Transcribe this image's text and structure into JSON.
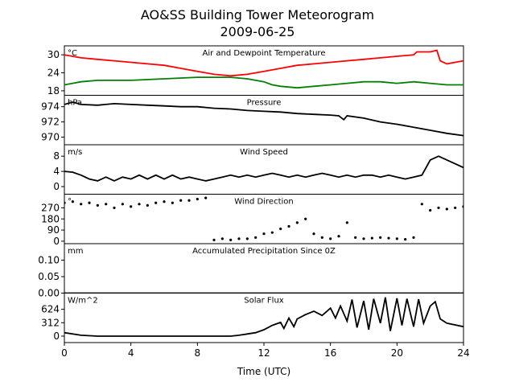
{
  "figure": {
    "title": "AO&SS Building Tower Meteorogram",
    "subtitle": "2009-06-25"
  },
  "colors": {
    "air_temp": "#ff0000",
    "dewpoint": "#008000",
    "line": "#000000"
  },
  "chart_data": [
    {
      "type": "line",
      "title": "Air and Dewpoint Temperature",
      "unit": "°C",
      "ylim": [
        16.5,
        33
      ],
      "yticks": [
        18,
        24,
        30
      ],
      "ytick_labels": [
        "18",
        "24",
        "30"
      ],
      "xlim": [
        0,
        24
      ],
      "series": [
        {
          "color_key": "air_temp",
          "x": [
            0,
            0.5,
            1,
            2,
            3,
            4,
            5,
            6,
            7,
            8,
            9,
            10,
            11,
            12,
            13,
            14,
            15,
            16,
            17,
            18,
            19,
            20,
            21,
            21.2,
            22,
            22.4,
            22.6,
            23,
            24
          ],
          "values": [
            30,
            29.5,
            29,
            28.5,
            28,
            27.5,
            27,
            26.5,
            25.5,
            24.5,
            23.5,
            23,
            23.5,
            24.5,
            25.5,
            26.5,
            27,
            27.5,
            28,
            28.5,
            29,
            29.5,
            30,
            31,
            31,
            31.5,
            28,
            27,
            28
          ]
        },
        {
          "color_key": "dewpoint",
          "x": [
            0,
            0.5,
            1,
            2,
            4,
            6,
            8,
            10,
            11,
            12,
            12.5,
            13,
            14,
            15,
            16,
            17,
            18,
            19,
            20,
            21,
            22,
            23,
            24
          ],
          "values": [
            20,
            20.5,
            21,
            21.5,
            21.5,
            22,
            22.5,
            22.5,
            22,
            21,
            20,
            19.5,
            19,
            19.5,
            20,
            20.5,
            21,
            21,
            20.5,
            21,
            20.5,
            20,
            20
          ]
        }
      ]
    },
    {
      "type": "line",
      "title": "Pressure",
      "unit": "hPa",
      "ylim": [
        969,
        975.5
      ],
      "yticks": [
        970,
        972,
        974
      ],
      "ytick_labels": [
        "970",
        "972",
        "974"
      ],
      "xlim": [
        0,
        24
      ],
      "series": [
        {
          "color_key": "line",
          "x": [
            0,
            0.5,
            1,
            2,
            3,
            4,
            5,
            6,
            7,
            8,
            9,
            10,
            11,
            12,
            13,
            14,
            15,
            16,
            16.5,
            16.8,
            17,
            18,
            19,
            20,
            21,
            22,
            23,
            24
          ],
          "values": [
            974.3,
            974.6,
            974.3,
            974.2,
            974.4,
            974.3,
            974.2,
            974.1,
            974.0,
            974.0,
            973.8,
            973.7,
            973.5,
            973.4,
            973.3,
            973.1,
            973.0,
            972.9,
            972.8,
            972.3,
            972.8,
            972.5,
            972.0,
            971.7,
            971.3,
            970.9,
            970.5,
            970.2
          ]
        }
      ]
    },
    {
      "type": "line",
      "title": "Wind Speed",
      "unit": "m/s",
      "ylim": [
        -2,
        11
      ],
      "yticks": [
        0,
        4,
        8
      ],
      "ytick_labels": [
        "0",
        "4",
        "8"
      ],
      "xlim": [
        0,
        24
      ],
      "series": [
        {
          "color_key": "line",
          "x": [
            0,
            0.5,
            1,
            1.5,
            2,
            2.5,
            3,
            3.5,
            4,
            4.5,
            5,
            5.5,
            6,
            6.5,
            7,
            7.5,
            8,
            8.5,
            9,
            9.5,
            10,
            10.5,
            11,
            11.5,
            12,
            12.5,
            13,
            13.5,
            14,
            14.5,
            15,
            15.5,
            16,
            16.5,
            17,
            17.5,
            18,
            18.5,
            19,
            19.5,
            20,
            20.5,
            21,
            21.5,
            22,
            22.5,
            23,
            23.5,
            24
          ],
          "values": [
            4,
            3.8,
            3,
            2,
            1.5,
            2.5,
            1.5,
            2.5,
            2,
            3,
            2,
            3,
            2,
            3,
            2,
            2.5,
            2,
            1.5,
            2,
            2.5,
            3,
            2.5,
            3,
            2.5,
            3,
            3.5,
            3,
            2.5,
            3,
            2.5,
            3,
            3.5,
            3,
            2.5,
            3,
            2.5,
            3,
            3,
            2.5,
            3,
            2.5,
            2,
            2.5,
            3,
            7,
            8,
            7,
            6,
            5
          ]
        }
      ]
    },
    {
      "type": "scatter",
      "title": "Wind Direction",
      "unit": "°",
      "ylim": [
        -20,
        380
      ],
      "yticks": [
        0,
        90,
        180,
        270
      ],
      "ytick_labels": [
        "0",
        "90",
        "180",
        "270"
      ],
      "xlim": [
        0,
        24
      ],
      "series": [
        {
          "color_key": "line",
          "x": [
            0,
            0.5,
            1,
            1.5,
            2,
            2.5,
            3,
            3.5,
            4,
            4.5,
            5,
            5.5,
            6,
            6.5,
            7,
            7.5,
            8,
            8.5,
            9,
            9.5,
            10,
            10.5,
            11,
            11.5,
            12,
            12.5,
            13,
            13.5,
            14,
            14.5,
            15,
            15.5,
            16,
            16.5,
            17,
            17.5,
            18,
            18.5,
            19,
            19.5,
            20,
            20.5,
            21,
            21.5,
            22,
            22.5,
            23,
            23.5,
            24
          ],
          "values": [
            310,
            320,
            300,
            310,
            290,
            300,
            270,
            300,
            280,
            300,
            290,
            310,
            320,
            310,
            330,
            330,
            340,
            350,
            10,
            20,
            10,
            20,
            20,
            30,
            60,
            70,
            100,
            120,
            150,
            180,
            60,
            30,
            20,
            40,
            150,
            30,
            20,
            25,
            30,
            25,
            20,
            15,
            30,
            300,
            250,
            270,
            260,
            270,
            280
          ]
        }
      ]
    },
    {
      "type": "line",
      "title": "Accumulated Precipitation Since 0Z",
      "unit": "mm",
      "ylim": [
        0,
        0.15
      ],
      "yticks": [
        0,
        0.05,
        0.1
      ],
      "ytick_labels": [
        "0.00",
        "0.05",
        "0.10"
      ],
      "xlim": [
        0,
        24
      ],
      "series": [
        {
          "color_key": "line",
          "x": [
            0,
            24
          ],
          "values": [
            0,
            0
          ]
        }
      ]
    },
    {
      "type": "line",
      "title": "Solar Flux",
      "unit": "W/m^2",
      "xlabel": "Time (UTC)",
      "ylim": [
        -150,
        1000
      ],
      "yticks": [
        0,
        312,
        624
      ],
      "ytick_labels": [
        "0",
        "312",
        "624"
      ],
      "xlim": [
        0,
        24
      ],
      "xticks": [
        0,
        4,
        8,
        12,
        16,
        20,
        24
      ],
      "xtick_labels": [
        "0",
        "4",
        "8",
        "12",
        "16",
        "20",
        "24"
      ],
      "series": [
        {
          "color_key": "line",
          "x": [
            0,
            1,
            2,
            4,
            6,
            8,
            10,
            10.5,
            11,
            11.5,
            12,
            12.5,
            13,
            13.2,
            13.5,
            13.8,
            14,
            14.5,
            15,
            15.5,
            16,
            16.3,
            16.6,
            17,
            17.3,
            17.6,
            18,
            18.3,
            18.6,
            19,
            19.3,
            19.6,
            20,
            20.3,
            20.6,
            21,
            21.3,
            21.6,
            22,
            22.3,
            22.6,
            23,
            24
          ],
          "values": [
            80,
            20,
            0,
            0,
            0,
            0,
            0,
            20,
            50,
            80,
            150,
            250,
            320,
            180,
            420,
            220,
            400,
            500,
            580,
            480,
            650,
            420,
            700,
            350,
            850,
            200,
            820,
            150,
            870,
            300,
            900,
            120,
            880,
            250,
            870,
            220,
            860,
            300,
            700,
            800,
            400,
            300,
            220
          ]
        }
      ]
    }
  ]
}
